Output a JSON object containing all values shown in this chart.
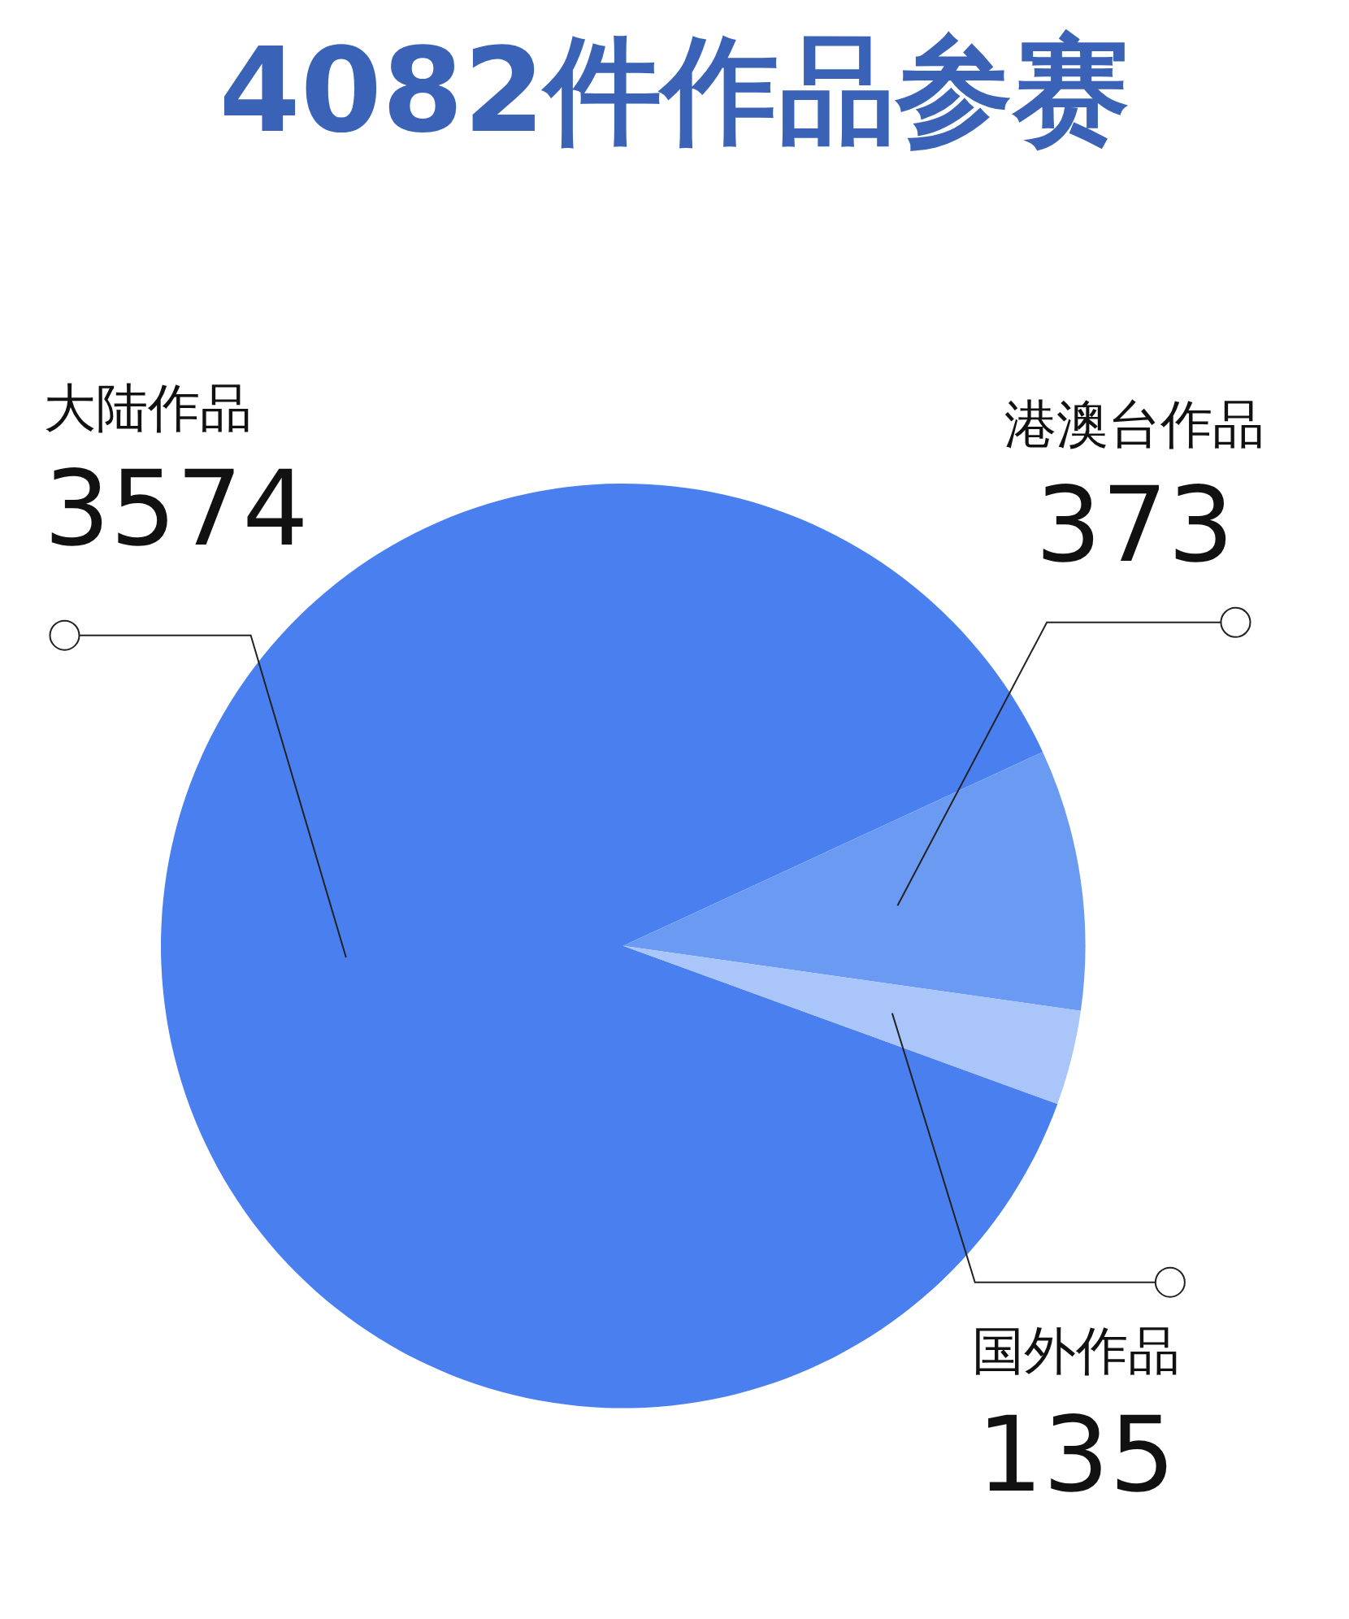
{
  "chart_data": {
    "type": "pie",
    "title": "4082件作品参赛",
    "categories": [
      "大陆作品",
      "港澳台作品",
      "国外作品"
    ],
    "values": [
      3574,
      373,
      135
    ],
    "colors": [
      "#4a7fef",
      "#6b9af2",
      "#a9c5fa"
    ],
    "data_labels": true,
    "legend": false
  }
}
